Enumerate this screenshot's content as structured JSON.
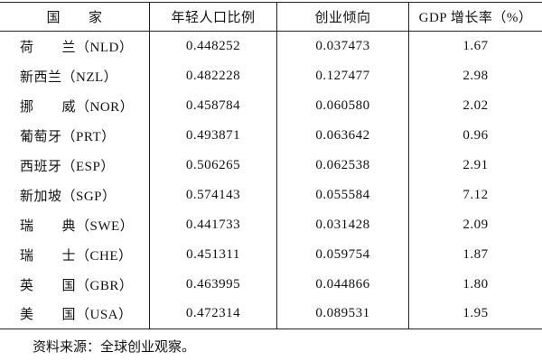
{
  "table": {
    "headers": [
      "国　　家",
      "年轻人口比例",
      "创业倾向",
      "GDP 增长率（%）"
    ],
    "rows": [
      [
        "荷　　兰（NLD）",
        "0.448252",
        "0.037473",
        "1.67"
      ],
      [
        "新西兰（NZL）",
        "0.482228",
        "0.127477",
        "2.98"
      ],
      [
        "挪　　威（NOR）",
        "0.458784",
        "0.060580",
        "2.02"
      ],
      [
        "葡萄牙（PRT）",
        "0.493871",
        "0.063642",
        "0.96"
      ],
      [
        "西班牙（ESP）",
        "0.506265",
        "0.062538",
        "2.91"
      ],
      [
        "新加坡（SGP）",
        "0.574143",
        "0.055584",
        "7.12"
      ],
      [
        "瑞　　典（SWE）",
        "0.441733",
        "0.031428",
        "2.09"
      ],
      [
        "瑞　　士（CHE）",
        "0.451311",
        "0.059754",
        "1.87"
      ],
      [
        "英　　国（GBR）",
        "0.463995",
        "0.044866",
        "1.80"
      ],
      [
        "美　　国（USA）",
        "0.472314",
        "0.089531",
        "1.95"
      ]
    ]
  },
  "note": "资料来源：全球创业观察。"
}
